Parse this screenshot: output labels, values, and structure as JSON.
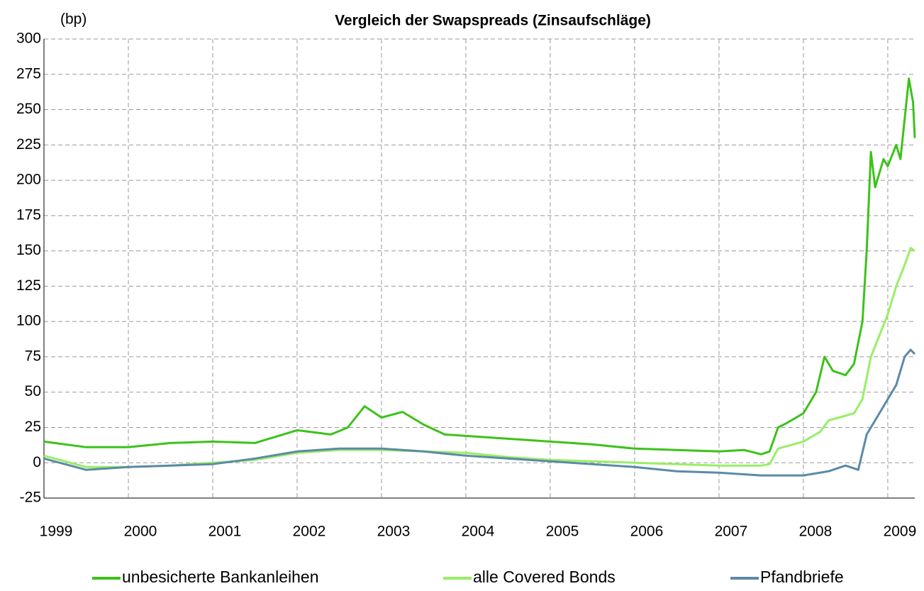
{
  "chart_data": {
    "type": "line",
    "title": "Vergleich der Swapspreads (Zinsaufschläge)",
    "y_label": "(bp)",
    "xlim": [
      1999,
      2009.32
    ],
    "xticks": [
      1999,
      2000,
      2001,
      2002,
      2003,
      2004,
      2005,
      2006,
      2007,
      2008,
      2009
    ],
    "ylim": [
      -25,
      300
    ],
    "yticks": [
      -25,
      0,
      25,
      50,
      75,
      100,
      125,
      150,
      175,
      200,
      225,
      250,
      275,
      300
    ],
    "grid": true,
    "legend": "bottom",
    "series": [
      {
        "name": "unbesicherte Bankanleihen",
        "color": "#3cc21a",
        "x": [
          1999.0,
          1999.5,
          2000.0,
          2000.5,
          2001.0,
          2001.5,
          2002.0,
          2002.4,
          2002.6,
          2002.8,
          2003.0,
          2003.25,
          2003.5,
          2003.75,
          2004.0,
          2004.5,
          2005.0,
          2005.5,
          2006.0,
          2006.5,
          2007.0,
          2007.3,
          2007.5,
          2007.6,
          2007.7,
          2007.8,
          2008.0,
          2008.15,
          2008.25,
          2008.35,
          2008.5,
          2008.6,
          2008.7,
          2008.75,
          2008.8,
          2008.85,
          2008.95,
          2009.0,
          2009.1,
          2009.15,
          2009.25,
          2009.3,
          2009.32
        ],
        "values": [
          15,
          11,
          11,
          14,
          15,
          14,
          23,
          20,
          25,
          40,
          32,
          36,
          27,
          20,
          19,
          17,
          15,
          13,
          10,
          9,
          8,
          9,
          6,
          8,
          25,
          28,
          35,
          50,
          75,
          65,
          62,
          70,
          100,
          150,
          220,
          195,
          215,
          210,
          225,
          215,
          272,
          255,
          230
        ]
      },
      {
        "name": "alle Covered Bonds",
        "color": "#99ee66",
        "x": [
          1999.0,
          1999.5,
          2000.0,
          2000.5,
          2001.0,
          2001.5,
          2002.0,
          2002.5,
          2003.0,
          2003.5,
          2004.0,
          2004.5,
          2005.0,
          2005.5,
          2006.0,
          2006.5,
          2007.0,
          2007.5,
          2007.6,
          2007.7,
          2008.0,
          2008.2,
          2008.3,
          2008.6,
          2008.7,
          2008.8,
          2008.9,
          2009.0,
          2009.1,
          2009.2,
          2009.27,
          2009.32
        ],
        "values": [
          5,
          -3,
          -3,
          -2,
          0,
          2,
          7,
          9,
          9,
          8,
          7,
          4,
          2,
          1,
          0,
          -1,
          -2,
          -2,
          -1,
          10,
          15,
          22,
          30,
          35,
          45,
          75,
          90,
          105,
          125,
          140,
          152,
          150
        ]
      },
      {
        "name": "Pfandbriefe",
        "color": "#5b8aa6",
        "x": [
          1999.0,
          1999.5,
          2000.0,
          2000.5,
          2001.0,
          2001.5,
          2002.0,
          2002.5,
          2003.0,
          2003.5,
          2004.0,
          2004.5,
          2005.0,
          2005.5,
          2006.0,
          2006.5,
          2007.0,
          2007.5,
          2008.0,
          2008.3,
          2008.5,
          2008.65,
          2008.75,
          2008.9,
          2009.0,
          2009.1,
          2009.2,
          2009.27,
          2009.32
        ],
        "values": [
          3,
          -5,
          -3,
          -2,
          -1,
          3,
          8,
          10,
          10,
          8,
          5,
          3,
          1,
          -1,
          -3,
          -6,
          -7,
          -9,
          -9,
          -6,
          -2,
          -5,
          20,
          35,
          45,
          55,
          75,
          80,
          77
        ]
      }
    ]
  }
}
